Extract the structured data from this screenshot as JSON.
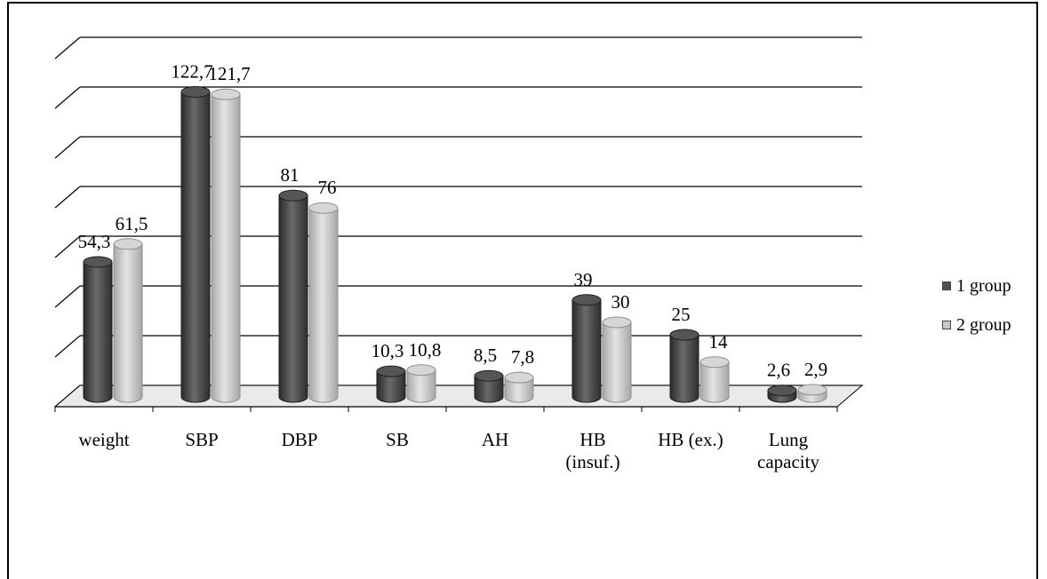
{
  "chart_data": {
    "type": "bar",
    "categories": [
      "weight",
      "SBP",
      "DBP",
      "SB",
      "AH",
      "HB (insuf.)",
      "HB (ex.)",
      "Lung capacity"
    ],
    "category_lines": [
      [
        "weight"
      ],
      [
        "SBP"
      ],
      [
        "DBP"
      ],
      [
        "SB"
      ],
      [
        "AH"
      ],
      [
        "HB",
        "(insuf.)"
      ],
      [
        "HB (ex.)"
      ],
      [
        "Lung",
        "capacity"
      ]
    ],
    "series": [
      {
        "name": "1 group",
        "values": [
          54.3,
          122.7,
          81,
          10.3,
          8.5,
          39,
          25,
          2.6
        ],
        "labels": [
          "54,3",
          "122,7",
          "81",
          "10,3",
          "8,5",
          "39",
          "25",
          "2,6"
        ]
      },
      {
        "name": "2 group",
        "values": [
          61.5,
          121.7,
          76,
          10.8,
          7.8,
          30,
          14,
          2.9
        ],
        "labels": [
          "61,5",
          "121,7",
          "76",
          "10,8",
          "7,8",
          "30",
          "14",
          "2,9"
        ]
      }
    ],
    "ylim": [
      0,
      140
    ],
    "grid": true,
    "legend_position": "right",
    "colors": {
      "1 group": "#404040",
      "2 group": "#bdbdbd"
    }
  }
}
